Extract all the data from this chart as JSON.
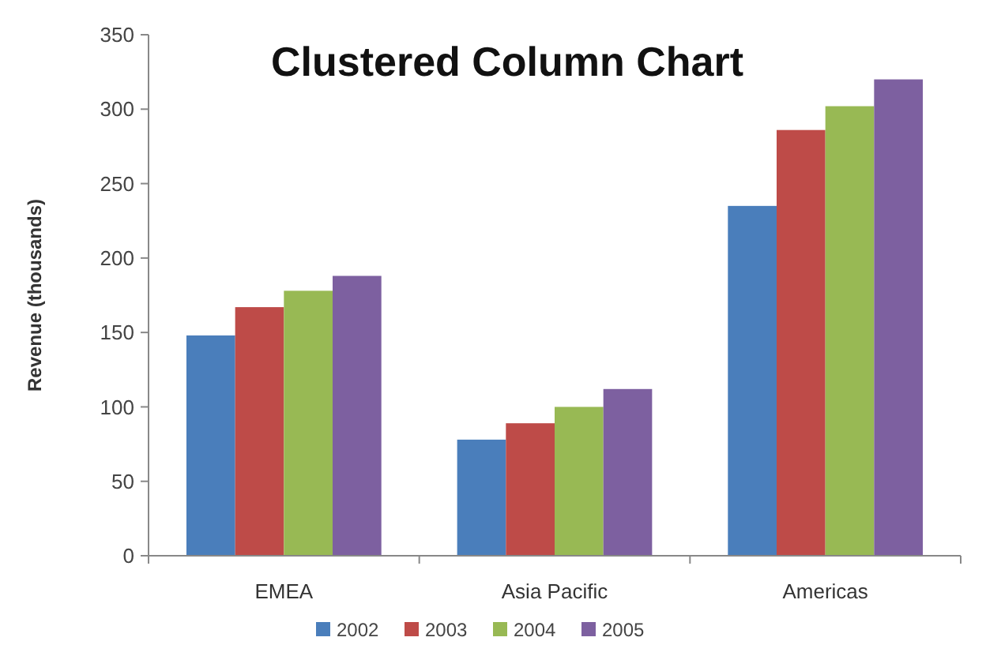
{
  "chart_data": {
    "type": "bar",
    "title": "Clustered Column Chart",
    "ylabel": "Revenue (thousands)",
    "categories": [
      "EMEA",
      "Asia Pacific",
      "Americas"
    ],
    "series": [
      {
        "name": "2002",
        "color": "#4a7ebb",
        "values": [
          148,
          78,
          235
        ]
      },
      {
        "name": "2003",
        "color": "#be4b48",
        "values": [
          167,
          89,
          286
        ]
      },
      {
        "name": "2004",
        "color": "#98b954",
        "values": [
          178,
          100,
          302
        ]
      },
      {
        "name": "2005",
        "color": "#7d60a0",
        "values": [
          188,
          112,
          320
        ]
      }
    ],
    "ylim": [
      0,
      350
    ],
    "yticks": [
      0,
      50,
      100,
      150,
      200,
      250,
      300,
      350
    ],
    "grid": false,
    "legend": "bottom"
  }
}
